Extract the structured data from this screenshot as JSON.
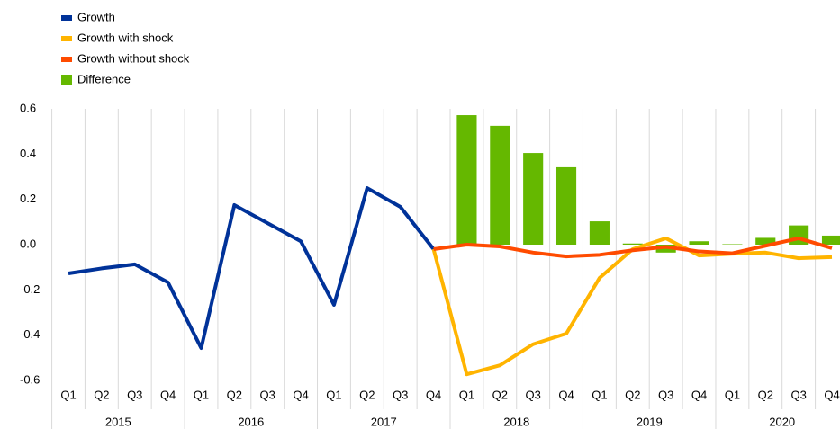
{
  "chart_data": {
    "type": "combo",
    "categories": [
      "Q1",
      "Q2",
      "Q3",
      "Q4",
      "Q1",
      "Q2",
      "Q3",
      "Q4",
      "Q1",
      "Q2",
      "Q3",
      "Q4",
      "Q1",
      "Q2",
      "Q3",
      "Q4",
      "Q1",
      "Q2",
      "Q3",
      "Q4",
      "Q1",
      "Q2",
      "Q3",
      "Q4"
    ],
    "years": [
      "2015",
      "2016",
      "2017",
      "2018",
      "2019",
      "2020"
    ],
    "series": [
      {
        "name": "Growth",
        "type": "line",
        "color": "#003299",
        "values": [
          -0.127,
          -0.105,
          -0.087,
          -0.167,
          -0.457,
          0.175,
          0.095,
          0.015,
          -0.266,
          0.25,
          0.167,
          -0.02,
          null,
          null,
          null,
          null,
          null,
          null,
          null,
          null,
          null,
          null,
          null,
          null
        ]
      },
      {
        "name": "Growth with shock",
        "type": "line",
        "color": "#ffb400",
        "values": [
          null,
          null,
          null,
          null,
          null,
          null,
          null,
          null,
          null,
          null,
          null,
          -0.02,
          -0.573,
          -0.533,
          -0.44,
          -0.393,
          -0.147,
          -0.02,
          0.028,
          -0.048,
          -0.04,
          -0.035,
          -0.06,
          -0.055
        ]
      },
      {
        "name": "Growth without shock",
        "type": "line",
        "color": "#ff4b00",
        "values": [
          null,
          null,
          null,
          null,
          null,
          null,
          null,
          null,
          null,
          null,
          null,
          -0.02,
          0.0,
          -0.008,
          -0.035,
          -0.052,
          -0.045,
          -0.025,
          -0.01,
          -0.03,
          -0.038,
          -0.005,
          0.028,
          -0.015
        ]
      },
      {
        "name": "Difference",
        "type": "bar",
        "color": "#65b800",
        "values": [
          null,
          null,
          null,
          null,
          null,
          null,
          null,
          null,
          null,
          null,
          null,
          null,
          0.572,
          0.525,
          0.405,
          0.342,
          0.103,
          0.005,
          -0.035,
          0.015,
          0.002,
          0.03,
          0.085,
          0.04
        ]
      }
    ],
    "ylim": [
      -0.6,
      0.6
    ],
    "yticks": [
      {
        "value": 0.6,
        "label": "0.6"
      },
      {
        "value": 0.4,
        "label": "0.4"
      },
      {
        "value": 0.2,
        "label": "0.2"
      },
      {
        "value": 0,
        "label": "0.0"
      },
      {
        "value": -0.2,
        "label": "-0.2"
      },
      {
        "value": -0.4,
        "label": "-0.4"
      },
      {
        "value": -0.6,
        "label": "-0.6"
      }
    ],
    "legend": "top-left"
  }
}
